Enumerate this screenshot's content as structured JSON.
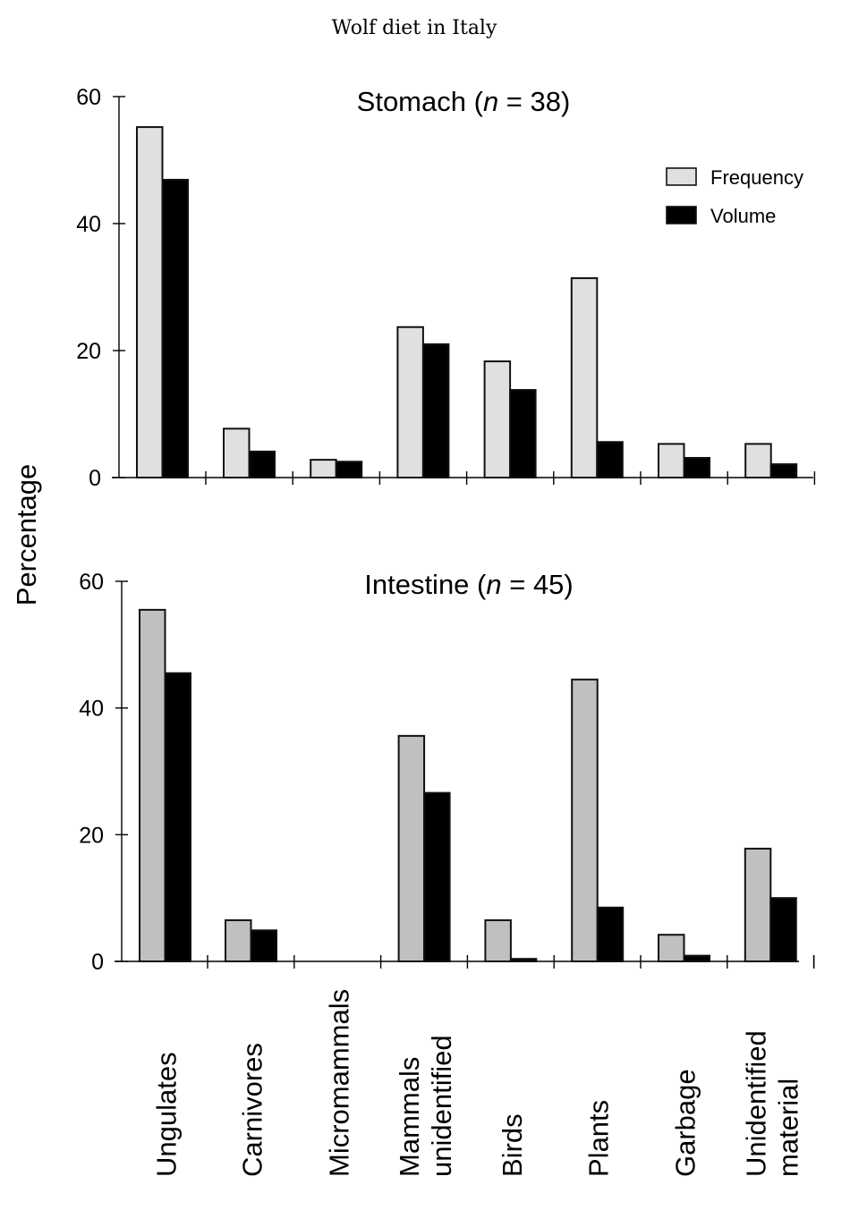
{
  "chart_data": {
    "type": "bar",
    "title": "Wolf diet in Italy",
    "ylabel": "Percentage",
    "xlabel": "",
    "categories": [
      [
        "Ungulates"
      ],
      [
        "Carnivores"
      ],
      [
        "Micromammals"
      ],
      [
        "Mammals",
        "unidentified"
      ],
      [
        "Birds"
      ],
      [
        "Plants"
      ],
      [
        "Garbage"
      ],
      [
        "Unidentified",
        "material"
      ]
    ],
    "legend": {
      "position": "top-right",
      "entries": [
        {
          "name": "Frequency",
          "color": "#e0e0e0"
        },
        {
          "name": "Volume",
          "color": "#000000"
        }
      ]
    },
    "panels": [
      {
        "title_prefix": "Stomach (",
        "title_var": "n",
        "title_suffix": " = 38)",
        "ylim": [
          0,
          60
        ],
        "yticks": [
          0,
          20,
          40,
          60
        ],
        "frequency_color": "#e0e0e0",
        "volume_color": "#000000",
        "series": [
          {
            "name": "Frequency",
            "values": [
              55.2,
              7.7,
              2.8,
              23.7,
              18.3,
              31.4,
              5.3,
              5.3
            ]
          },
          {
            "name": "Volume",
            "values": [
              46.9,
              4.1,
              2.5,
              21.0,
              13.8,
              5.6,
              3.1,
              2.1
            ]
          }
        ]
      },
      {
        "title_prefix": "Intestine (",
        "title_var": "n",
        "title_suffix": " = 45)",
        "ylim": [
          0,
          60
        ],
        "yticks": [
          0,
          20,
          40,
          60
        ],
        "frequency_color": "#c0c0c0",
        "volume_color": "#000000",
        "series": [
          {
            "name": "Frequency",
            "values": [
              55.5,
              6.5,
              0,
              35.6,
              6.5,
              44.5,
              4.2,
              17.8
            ]
          },
          {
            "name": "Volume",
            "values": [
              45.5,
              4.9,
              0,
              26.6,
              0.4,
              8.5,
              0.9,
              10.0
            ]
          }
        ]
      }
    ]
  }
}
